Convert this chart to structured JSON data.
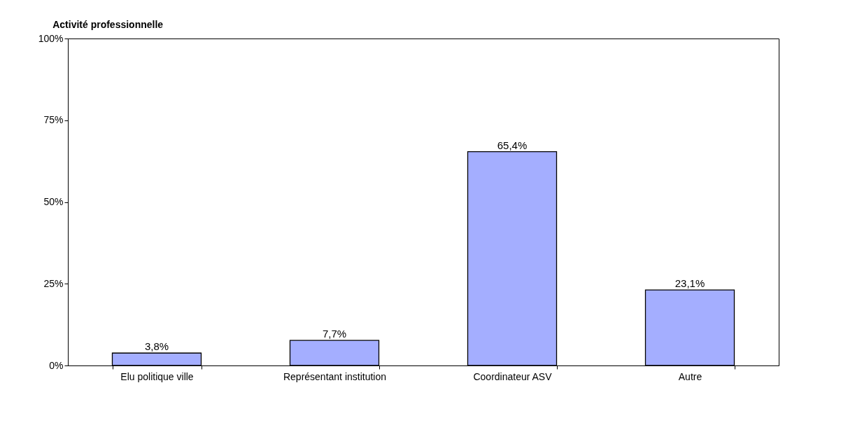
{
  "chart_data": {
    "type": "bar",
    "title": "Activité professionnelle",
    "categories": [
      "Elu politique ville",
      "Représentant institution",
      "Coordinateur ASV",
      "Autre"
    ],
    "values": [
      3.8,
      7.7,
      65.4,
      23.1
    ],
    "value_labels": [
      "3,8%",
      "7,7%",
      "65,4%",
      "23,1%"
    ],
    "color": "#a4aeff",
    "ylim": [
      0,
      100
    ],
    "yticks": [
      {
        "value": 0,
        "label": "0%"
      },
      {
        "value": 25,
        "label": "25%"
      },
      {
        "value": 50,
        "label": "50%"
      },
      {
        "value": 75,
        "label": "75%"
      },
      {
        "value": 100,
        "label": "100%"
      }
    ],
    "grid": false
  }
}
